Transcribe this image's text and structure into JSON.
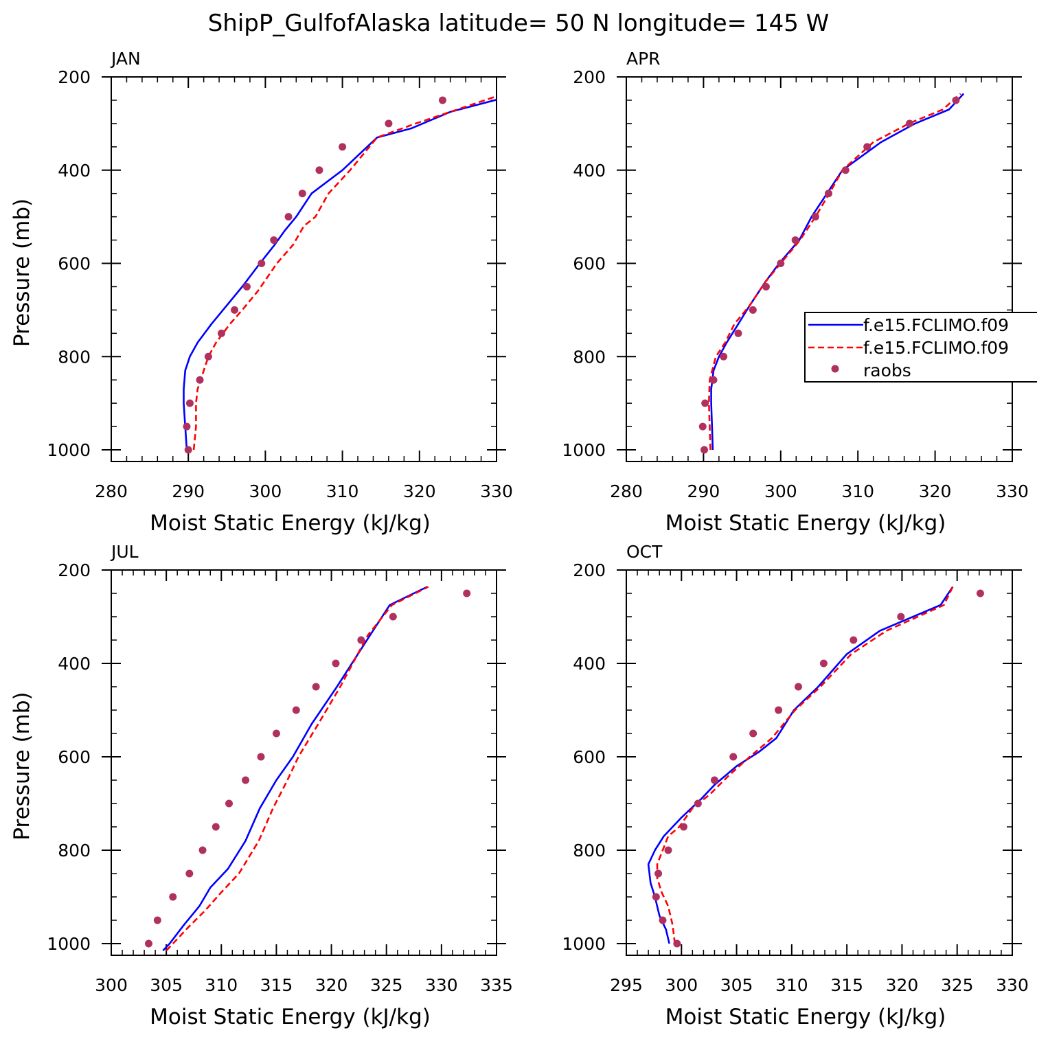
{
  "figure": {
    "title": "ShipP_GulfofAlaska  latitude= 50 N longitude= 145 W"
  },
  "legend": {
    "entries": [
      {
        "label": "f.e15.FCLIMO.f09",
        "color": "#0000ff",
        "style": "solid"
      },
      {
        "label": "f.e15.FCLIMO.f09",
        "color": "#ff0000",
        "style": "dashed"
      },
      {
        "label": "raobs",
        "color": "#b03060",
        "style": "marker"
      }
    ]
  },
  "colors": {
    "series_1": "#0000ff",
    "series_2": "#ff0000",
    "raobs": "#b03060"
  },
  "chart_data": [
    {
      "type": "line",
      "panel_label": "JAN",
      "xlabel": "Moist Static Energy (kJ/kg)",
      "ylabel": "Pressure (mb)",
      "xlim": [
        280,
        330
      ],
      "ylim": [
        1025,
        200
      ],
      "xticks": [
        "280",
        "290",
        "300",
        "310",
        "320",
        "330"
      ],
      "yticks": [
        "200",
        "400",
        "600",
        "800",
        "1000"
      ],
      "grid": false,
      "legend": false,
      "series": [
        {
          "name": "f.e15.FCLIMO.f09",
          "style": "solid",
          "points": [
            [
              289.8,
              1000
            ],
            [
              289.6,
              950
            ],
            [
              289.4,
              900
            ],
            [
              289.4,
              870
            ],
            [
              289.6,
              830
            ],
            [
              290.2,
              800
            ],
            [
              291.2,
              770
            ],
            [
              293,
              730
            ],
            [
              294.5,
              700
            ],
            [
              297,
              650
            ],
            [
              299.3,
              600
            ],
            [
              301.2,
              560
            ],
            [
              302.5,
              530
            ],
            [
              304,
              500
            ],
            [
              306,
              450
            ],
            [
              310,
              400
            ],
            [
              314.5,
              330
            ],
            [
              319,
              310
            ],
            [
              324,
              275
            ],
            [
              333,
              236
            ]
          ]
        },
        {
          "name": "f.e15.FCLIMO.f09",
          "style": "dashed",
          "points": [
            [
              290.7,
              1000
            ],
            [
              291,
              950
            ],
            [
              291,
              900
            ],
            [
              291.2,
              870
            ],
            [
              291.6,
              850
            ],
            [
              292.6,
              800
            ],
            [
              293.6,
              770
            ],
            [
              295.4,
              730
            ],
            [
              297,
              700
            ],
            [
              299,
              660
            ],
            [
              301.5,
              600
            ],
            [
              303.6,
              560
            ],
            [
              305,
              520
            ],
            [
              306.5,
              500
            ],
            [
              308.2,
              450
            ],
            [
              311,
              400
            ],
            [
              314.5,
              330
            ],
            [
              319.5,
              300
            ],
            [
              324,
              275
            ],
            [
              331,
              236
            ]
          ]
        },
        {
          "name": "raobs",
          "style": "marker",
          "points": [
            [
              290,
              1000
            ],
            [
              289.8,
              950
            ],
            [
              290.2,
              900
            ],
            [
              291.5,
              850
            ],
            [
              292.6,
              800
            ],
            [
              294.3,
              750
            ],
            [
              296,
              700
            ],
            [
              297.6,
              650
            ],
            [
              299.5,
              600
            ],
            [
              301.1,
              550
            ],
            [
              303,
              500
            ],
            [
              304.8,
              450
            ],
            [
              307,
              400
            ],
            [
              310,
              350
            ],
            [
              316,
              300
            ],
            [
              323,
              250
            ]
          ]
        }
      ]
    },
    {
      "type": "line",
      "panel_label": "APR",
      "xlabel": "Moist Static Energy (kJ/kg)",
      "ylabel": "",
      "xlim": [
        280,
        330
      ],
      "ylim": [
        1025,
        200
      ],
      "xticks": [
        "280",
        "290",
        "300",
        "310",
        "320",
        "330"
      ],
      "yticks": [
        "200",
        "400",
        "600",
        "800",
        "1000"
      ],
      "grid": false,
      "legend": true,
      "series": [
        {
          "name": "f.e15.FCLIMO.f09",
          "style": "solid",
          "points": [
            [
              291.2,
              1000
            ],
            [
              291.1,
              950
            ],
            [
              291,
              900
            ],
            [
              291,
              870
            ],
            [
              291.3,
              830
            ],
            [
              292,
              800
            ],
            [
              293,
              770
            ],
            [
              294.5,
              730
            ],
            [
              296,
              690
            ],
            [
              298,
              640
            ],
            [
              299.8,
              600
            ],
            [
              302.4,
              550
            ],
            [
              304,
              500
            ],
            [
              306,
              450
            ],
            [
              308,
              400
            ],
            [
              313,
              340
            ],
            [
              317.4,
              300
            ],
            [
              321.8,
              270
            ],
            [
              323.7,
              236
            ]
          ]
        },
        {
          "name": "f.e15.FCLIMO.f09",
          "style": "dashed",
          "points": [
            [
              290.9,
              1000
            ],
            [
              290.8,
              950
            ],
            [
              290.7,
              900
            ],
            [
              290.8,
              850
            ],
            [
              291.6,
              800
            ],
            [
              292.8,
              770
            ],
            [
              294,
              730
            ],
            [
              296,
              690
            ],
            [
              298,
              640
            ],
            [
              300,
              600
            ],
            [
              302.5,
              550
            ],
            [
              304.5,
              500
            ],
            [
              306.3,
              450
            ],
            [
              308,
              400
            ],
            [
              312,
              340
            ],
            [
              316.6,
              300
            ],
            [
              321,
              270
            ],
            [
              323.3,
              236
            ]
          ]
        },
        {
          "name": "raobs",
          "style": "marker",
          "points": [
            [
              290.1,
              1000
            ],
            [
              289.9,
              950
            ],
            [
              290.2,
              900
            ],
            [
              291.3,
              850
            ],
            [
              292.6,
              800
            ],
            [
              294.5,
              750
            ],
            [
              296.4,
              700
            ],
            [
              298.1,
              650
            ],
            [
              300,
              600
            ],
            [
              301.9,
              550
            ],
            [
              304.5,
              500
            ],
            [
              306.2,
              450
            ],
            [
              308.4,
              400
            ],
            [
              311.2,
              350
            ],
            [
              316.7,
              300
            ],
            [
              322.7,
              250
            ]
          ]
        }
      ]
    },
    {
      "type": "line",
      "panel_label": "JUL",
      "xlabel": "Moist Static Energy (kJ/kg)",
      "ylabel": "Pressure (mb)",
      "xlim": [
        300,
        335
      ],
      "ylim": [
        1025,
        200
      ],
      "xticks": [
        "300",
        "305",
        "310",
        "315",
        "320",
        "325",
        "330",
        "335"
      ],
      "yticks": [
        "200",
        "400",
        "600",
        "800",
        "1000"
      ],
      "grid": false,
      "legend": false,
      "series": [
        {
          "name": "f.e15.FCLIMO.f09",
          "style": "solid",
          "points": [
            [
              304.7,
              1015
            ],
            [
              305.3,
              1000
            ],
            [
              306.6,
              960
            ],
            [
              308,
              920
            ],
            [
              309,
              880
            ],
            [
              310.6,
              840
            ],
            [
              312.2,
              780
            ],
            [
              313.5,
              710
            ],
            [
              315,
              650
            ],
            [
              316.5,
              600
            ],
            [
              318.2,
              530
            ],
            [
              320.5,
              450
            ],
            [
              323.5,
              340
            ],
            [
              325.3,
              275
            ],
            [
              328.7,
              236
            ]
          ]
        },
        {
          "name": "f.e15.FCLIMO.f09",
          "style": "dashed",
          "points": [
            [
              305,
              1015
            ],
            [
              305.6,
              1000
            ],
            [
              307,
              965
            ],
            [
              308.5,
              930
            ],
            [
              310,
              890
            ],
            [
              311.6,
              850
            ],
            [
              313.4,
              780
            ],
            [
              314.7,
              710
            ],
            [
              316,
              650
            ],
            [
              317,
              600
            ],
            [
              318.8,
              530
            ],
            [
              320.8,
              450
            ],
            [
              323.3,
              340
            ],
            [
              325.5,
              275
            ],
            [
              328.8,
              236
            ]
          ]
        },
        {
          "name": "raobs",
          "style": "marker",
          "points": [
            [
              303.4,
              1000
            ],
            [
              304.2,
              950
            ],
            [
              305.6,
              900
            ],
            [
              307.1,
              850
            ],
            [
              308.3,
              800
            ],
            [
              309.5,
              750
            ],
            [
              310.7,
              700
            ],
            [
              312.2,
              650
            ],
            [
              313.6,
              600
            ],
            [
              315,
              550
            ],
            [
              316.8,
              500
            ],
            [
              318.6,
              450
            ],
            [
              320.4,
              400
            ],
            [
              322.7,
              350
            ],
            [
              325.6,
              300
            ],
            [
              332.3,
              250
            ]
          ]
        }
      ]
    },
    {
      "type": "line",
      "panel_label": "OCT",
      "xlabel": "Moist Static Energy (kJ/kg)",
      "ylabel": "",
      "xlim": [
        295,
        330
      ],
      "ylim": [
        1025,
        200
      ],
      "xticks": [
        "295",
        "300",
        "305",
        "310",
        "315",
        "320",
        "325",
        "330"
      ],
      "yticks": [
        "200",
        "400",
        "600",
        "800",
        "1000"
      ],
      "grid": false,
      "legend": false,
      "series": [
        {
          "name": "f.e15.FCLIMO.f09",
          "style": "solid",
          "points": [
            [
              298.9,
              1000
            ],
            [
              298.6,
              970
            ],
            [
              298,
              940
            ],
            [
              297.6,
              900
            ],
            [
              297.2,
              870
            ],
            [
              297,
              830
            ],
            [
              297.6,
              800
            ],
            [
              298.4,
              770
            ],
            [
              300,
              730
            ],
            [
              301.8,
              690
            ],
            [
              303,
              660
            ],
            [
              305,
              620
            ],
            [
              307,
              590
            ],
            [
              308.6,
              560
            ],
            [
              310.2,
              500
            ],
            [
              312.4,
              450
            ],
            [
              315,
              380
            ],
            [
              318,
              330
            ],
            [
              323.5,
              275
            ],
            [
              324.6,
              236
            ]
          ]
        },
        {
          "name": "f.e15.FCLIMO.f09",
          "style": "dashed",
          "points": [
            [
              299.4,
              1000
            ],
            [
              299.2,
              960
            ],
            [
              298.8,
              920
            ],
            [
              298.2,
              890
            ],
            [
              297.8,
              860
            ],
            [
              297.8,
              830
            ],
            [
              298.3,
              800
            ],
            [
              298.8,
              770
            ],
            [
              299.8,
              750
            ],
            [
              301,
              710
            ],
            [
              302.6,
              680
            ],
            [
              304.3,
              640
            ],
            [
              306.2,
              600
            ],
            [
              308.2,
              560
            ],
            [
              310.3,
              500
            ],
            [
              312.6,
              450
            ],
            [
              315.4,
              380
            ],
            [
              318.6,
              330
            ],
            [
              323.8,
              275
            ],
            [
              324.6,
              236
            ]
          ]
        },
        {
          "name": "raobs",
          "style": "marker",
          "points": [
            [
              299.6,
              1000
            ],
            [
              298.3,
              950
            ],
            [
              297.7,
              900
            ],
            [
              297.9,
              850
            ],
            [
              298.8,
              800
            ],
            [
              300.2,
              750
            ],
            [
              301.5,
              700
            ],
            [
              303,
              650
            ],
            [
              304.7,
              600
            ],
            [
              306.5,
              550
            ],
            [
              308.8,
              500
            ],
            [
              310.6,
              450
            ],
            [
              312.9,
              400
            ],
            [
              315.6,
              350
            ],
            [
              319.9,
              300
            ],
            [
              327.1,
              250
            ]
          ]
        }
      ]
    }
  ]
}
